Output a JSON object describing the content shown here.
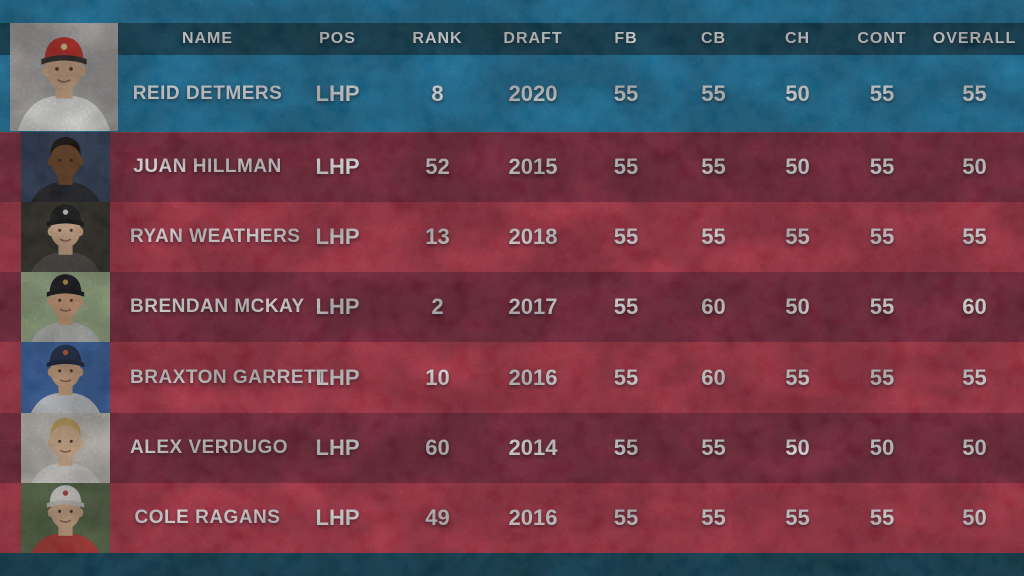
{
  "table": {
    "columns": {
      "name": "NAME",
      "pos": "POS",
      "rank": "RANK",
      "draft": "DRAFT",
      "fb": "FB",
      "cb": "CB",
      "ch": "CH",
      "cont": "CONT",
      "overall": "OVERALL"
    },
    "rows": [
      {
        "name": "REID DETMERS",
        "pos": "LHP",
        "rank": "8",
        "draft": "2020",
        "fb": "55",
        "cb": "55",
        "ch": "50",
        "cont": "55",
        "overall": "55",
        "highlighted": true,
        "avatar": {
          "bg": "#b8b6b4",
          "skin": "#e9bd97",
          "jersey": "#f4f3f1",
          "cap": "#cf2b24",
          "capBill": "#2c2a28",
          "capLogo": "#f2d8a0"
        }
      },
      {
        "name": "JUAN HILLMAN",
        "pos": "LHP",
        "rank": "52",
        "draft": "2015",
        "fb": "55",
        "cb": "55",
        "ch": "50",
        "cont": "55",
        "overall": "50",
        "highlighted": false,
        "avatar": {
          "bg": "#35435f",
          "skin": "#7a4a28",
          "jersey": "#23242a",
          "hair": "#17100c"
        }
      },
      {
        "name": "RYAN WEATHERS",
        "pos": "LHP",
        "rank": "13",
        "draft": "2018",
        "fb": "55",
        "cb": "55",
        "ch": "55",
        "cont": "55",
        "overall": "55",
        "highlighted": false,
        "avatar": {
          "bg": "#37332b",
          "skin": "#eabf9d",
          "jersey": "#55504a",
          "cap": "#191919",
          "capBill": "#101010",
          "capLogo": "#e8e8e8"
        }
      },
      {
        "name": "BRENDAN MCKAY",
        "pos": "LHP",
        "rank": "2",
        "draft": "2017",
        "fb": "55",
        "cb": "60",
        "ch": "50",
        "cont": "55",
        "overall": "60",
        "highlighted": false,
        "avatar": {
          "bg": "#a8bd92",
          "skin": "#e2ac83",
          "jersey": "#c9c9c5",
          "cap": "#16161c",
          "capBill": "#0f0f14",
          "capLogo": "#c8a24a"
        }
      },
      {
        "name": "BRAXTON GARRETT",
        "pos": "LHP",
        "rank": "10",
        "draft": "2016",
        "fb": "55",
        "cb": "60",
        "ch": "55",
        "cont": "55",
        "overall": "55",
        "highlighted": false,
        "avatar": {
          "bg": "#3d6cb4",
          "skin": "#e6b58d",
          "jersey": "#dfe3e8",
          "cap": "#1c2a4a",
          "capBill": "#16203a",
          "capLogo": "#d3622a"
        }
      },
      {
        "name": "ALEX VERDUGO",
        "pos": "LHP",
        "rank": "60",
        "draft": "2014",
        "fb": "55",
        "cb": "55",
        "ch": "50",
        "cont": "50",
        "overall": "50",
        "highlighted": false,
        "avatar": {
          "bg": "#d9d4cb",
          "skin": "#ecc39c",
          "jersey": "#f1efe9",
          "hair": "#d9b569"
        }
      },
      {
        "name": "COLE RAGANS",
        "pos": "LHP",
        "rank": "49",
        "draft": "2016",
        "fb": "55",
        "cb": "55",
        "ch": "55",
        "cont": "55",
        "overall": "50",
        "highlighted": false,
        "avatar": {
          "bg": "#5d714c",
          "skin": "#e7bd96",
          "jersey": "#bf3a35",
          "cap": "#ece9e4",
          "capBill": "#d9d5cf",
          "capLogo": "#c23a3a"
        }
      }
    ]
  },
  "colors": {
    "background_blue": "#1e80af",
    "header_band": "#11485f",
    "bottom_band": "#11485f",
    "row_dark_red": "#8d2b41",
    "row_light_red": "#c23a4e",
    "text": "#ffffff"
  },
  "chart_data": {
    "type": "table",
    "columns": [
      "NAME",
      "POS",
      "RANK",
      "DRAFT",
      "FB",
      "CB",
      "CH",
      "CONT",
      "OVERALL"
    ],
    "rows": [
      [
        "REID DETMERS",
        "LHP",
        8,
        2020,
        55,
        55,
        50,
        55,
        55
      ],
      [
        "JUAN HILLMAN",
        "LHP",
        52,
        2015,
        55,
        55,
        50,
        55,
        50
      ],
      [
        "RYAN WEATHERS",
        "LHP",
        13,
        2018,
        55,
        55,
        55,
        55,
        55
      ],
      [
        "BRENDAN MCKAY",
        "LHP",
        2,
        2017,
        55,
        60,
        50,
        55,
        60
      ],
      [
        "BRAXTON GARRETT",
        "LHP",
        10,
        2016,
        55,
        60,
        55,
        55,
        55
      ],
      [
        "ALEX VERDUGO",
        "LHP",
        60,
        2014,
        55,
        55,
        50,
        50,
        50
      ],
      [
        "COLE RAGANS",
        "LHP",
        49,
        2016,
        55,
        55,
        55,
        55,
        50
      ]
    ],
    "notes": "Featured first row (Reid Detmers) shown on blue; remaining rows alternate dark/light red."
  }
}
